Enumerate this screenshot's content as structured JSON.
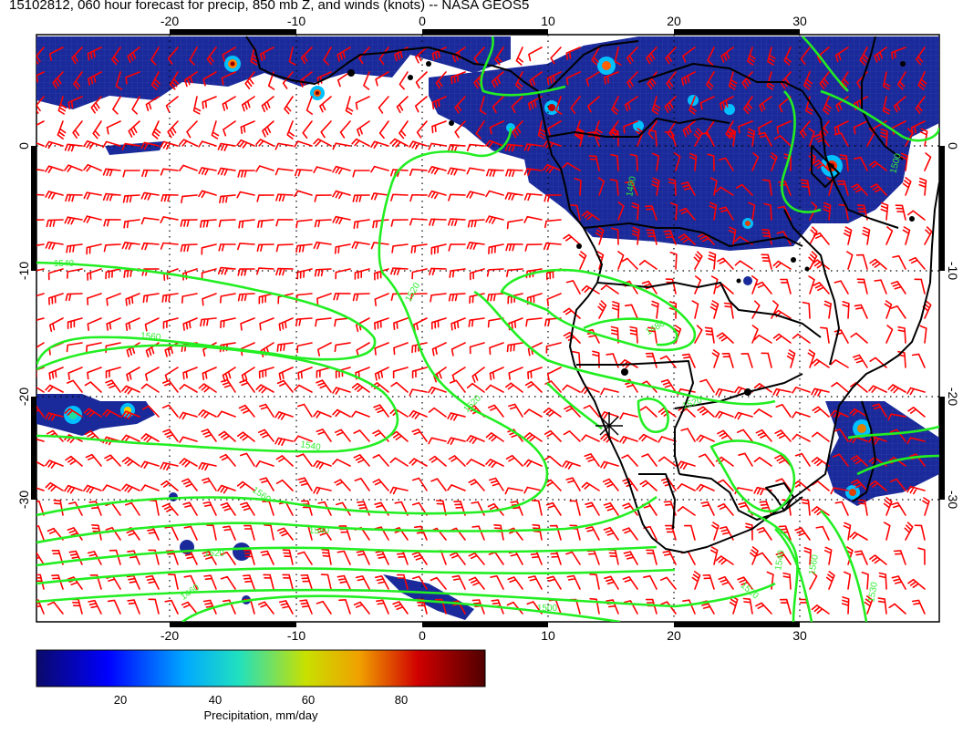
{
  "title": "15102812, 060 hour forecast for precip, 850 mb Z, and winds (knots) -- NASA GEOS5",
  "map": {
    "lon_ticks": [
      "-20",
      "-10",
      "0",
      "10",
      "20",
      "30"
    ],
    "lat_ticks": [
      "0",
      "-10",
      "-20",
      "-30"
    ],
    "contour_labels": [
      "1540",
      "1520",
      "1560",
      "1540",
      "1520",
      "1560",
      "1540",
      "1520",
      "1460",
      "1480",
      "1520",
      "1500",
      "1540",
      "1520",
      "1560",
      "1530",
      "1500",
      "1480"
    ],
    "colors": {
      "precip_base": "#1a2a9a",
      "contour": "#22ee22",
      "wind_barb": "#ff0000",
      "coastline": "#000000"
    },
    "marker_icon": "cross-star-icon"
  },
  "colorbar": {
    "ticks": [
      "20",
      "40",
      "60",
      "80"
    ],
    "label": "Precipitation, mm/day",
    "colors": [
      "#00007f",
      "#0000ff",
      "#00a0ff",
      "#00ffc0",
      "#c0ff00",
      "#ffd000",
      "#ff4000",
      "#c00000",
      "#500000"
    ]
  }
}
